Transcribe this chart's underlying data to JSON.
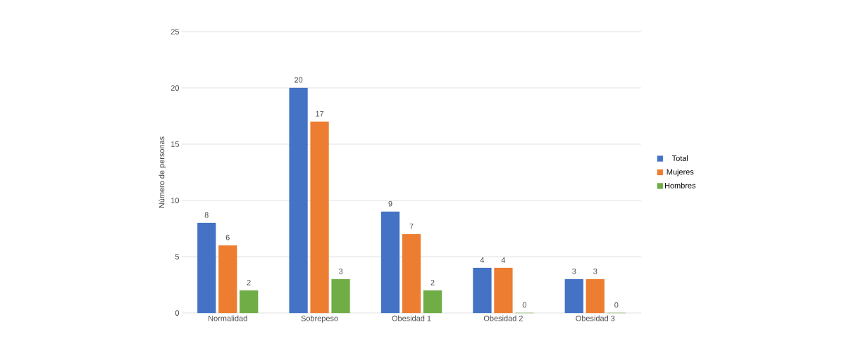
{
  "chart_data": {
    "type": "bar",
    "ylabel": "Número de personas",
    "categories": [
      "Normalidad",
      "Sobrepeso",
      "Obesidad 1",
      "Obesidad 2",
      "Obesidad 3"
    ],
    "series": [
      {
        "name": "Total",
        "color": "#4472c4",
        "values": [
          8,
          20,
          9,
          4,
          3
        ]
      },
      {
        "name": "Mujeres",
        "color": "#ed7d31",
        "values": [
          6,
          17,
          7,
          4,
          3
        ]
      },
      {
        "name": "Hombres",
        "color": "#70ad47",
        "values": [
          2,
          3,
          2,
          0,
          0
        ]
      }
    ],
    "ylim": [
      0,
      25
    ],
    "yticks": [
      0,
      5,
      10,
      15,
      20,
      25
    ],
    "grid": "y",
    "legend": "right",
    "data_labels": true
  }
}
